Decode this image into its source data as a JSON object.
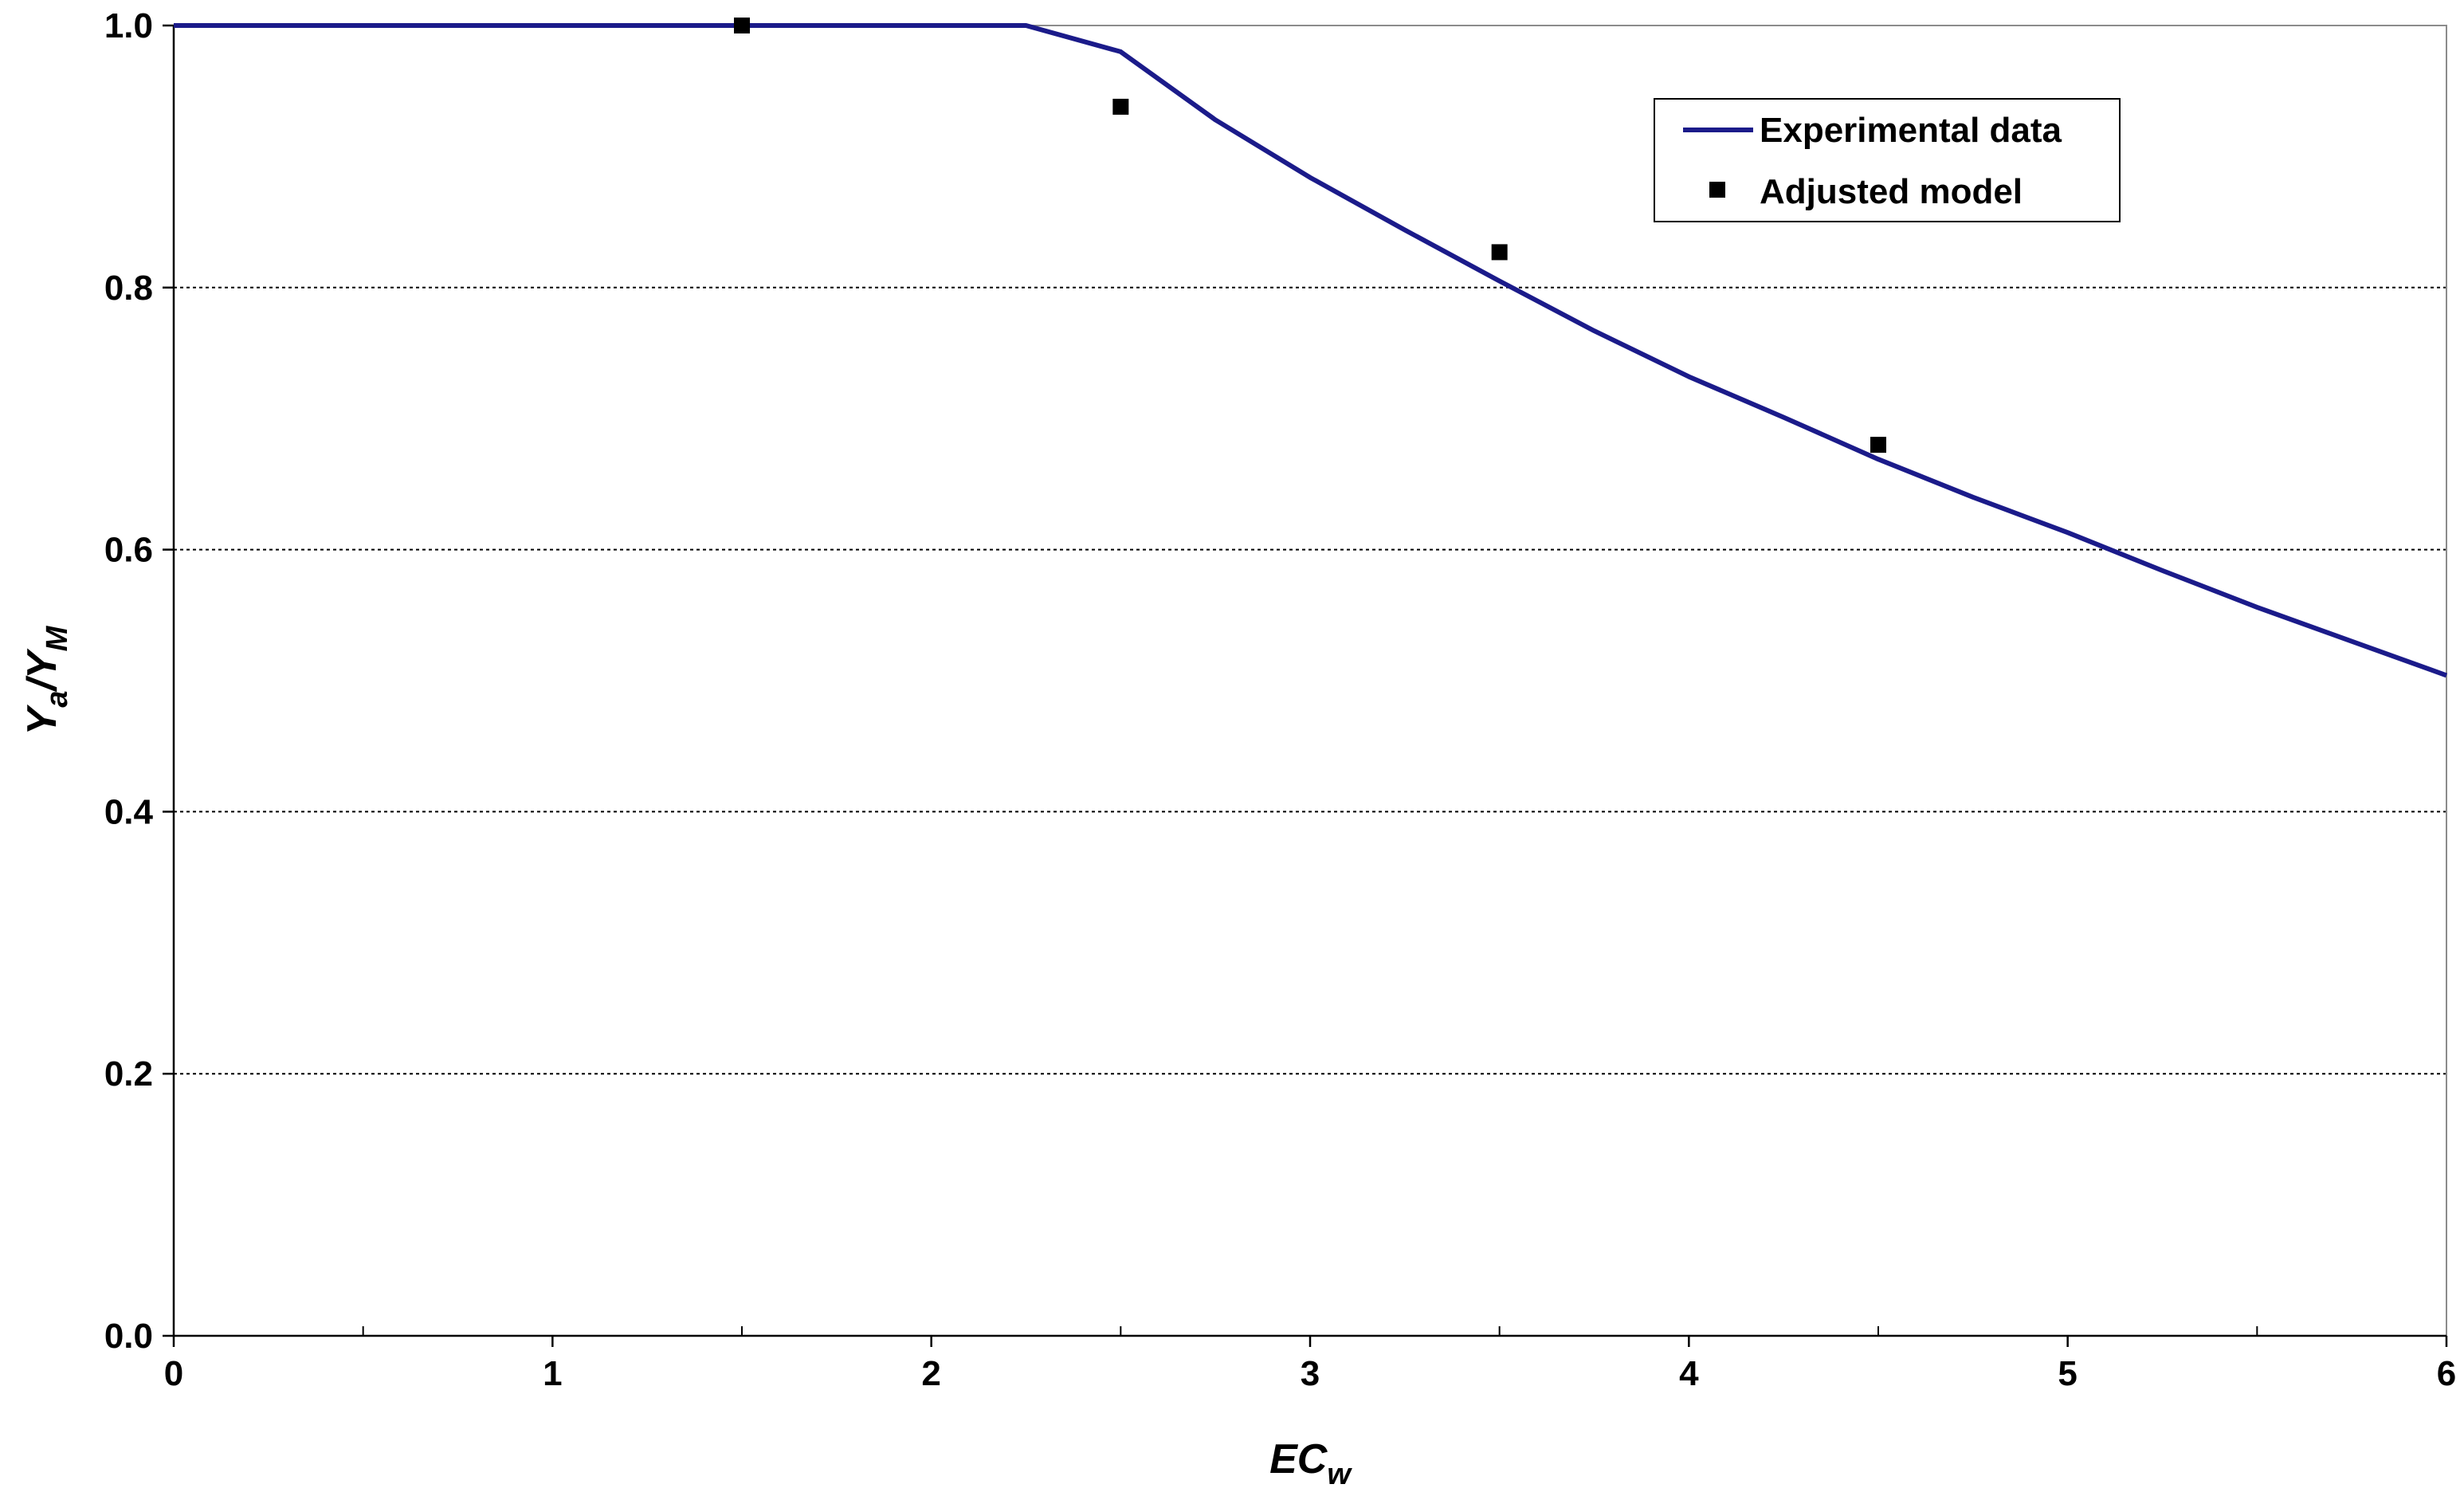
{
  "chart_data": {
    "type": "line",
    "title": "",
    "xlabel": {
      "main": "EC",
      "sub": "w"
    },
    "ylabel": {
      "part1": "Y",
      "sub1": "a",
      "part2": "/Y",
      "sub2": "M"
    },
    "xlim": [
      0,
      6
    ],
    "ylim": [
      0,
      1
    ],
    "x_ticks": [
      0,
      1,
      2,
      3,
      4,
      5,
      6
    ],
    "x_minor_ticks": [
      0.5,
      1.5,
      2.5,
      3.5,
      4.5,
      5.5
    ],
    "x_tick_labels": [
      "0",
      "1",
      "2",
      "3",
      "4",
      "5",
      "6"
    ],
    "y_ticks": [
      0,
      0.2,
      0.4,
      0.6,
      0.8,
      1.0
    ],
    "y_tick_labels": [
      "0.0",
      "0.2",
      "0.4",
      "0.6",
      "0.8",
      "1.0"
    ],
    "grid": "horizontal dashed",
    "legend_position": "top-right",
    "series": [
      {
        "name": "Experimental data",
        "kind": "line",
        "color": "#1b1b8a",
        "x": [
          0,
          0.5,
          1,
          1.5,
          2,
          2.25,
          2.5,
          2.75,
          3,
          3.25,
          3.5,
          3.75,
          4,
          4.25,
          4.5,
          4.75,
          5,
          5.25,
          5.5,
          5.75,
          6
        ],
        "y": [
          1.0,
          1.0,
          1.0,
          1.0,
          1.0,
          1.0,
          0.98,
          0.928,
          0.884,
          0.844,
          0.805,
          0.767,
          0.732,
          0.701,
          0.669,
          0.64,
          0.613,
          0.584,
          0.556,
          0.53,
          0.504
        ]
      },
      {
        "name": "Adjusted model",
        "kind": "marker",
        "color": "#000000",
        "x": [
          1.5,
          2.5,
          3.5,
          4.5
        ],
        "y": [
          1.0,
          0.938,
          0.827,
          0.68
        ]
      }
    ]
  }
}
